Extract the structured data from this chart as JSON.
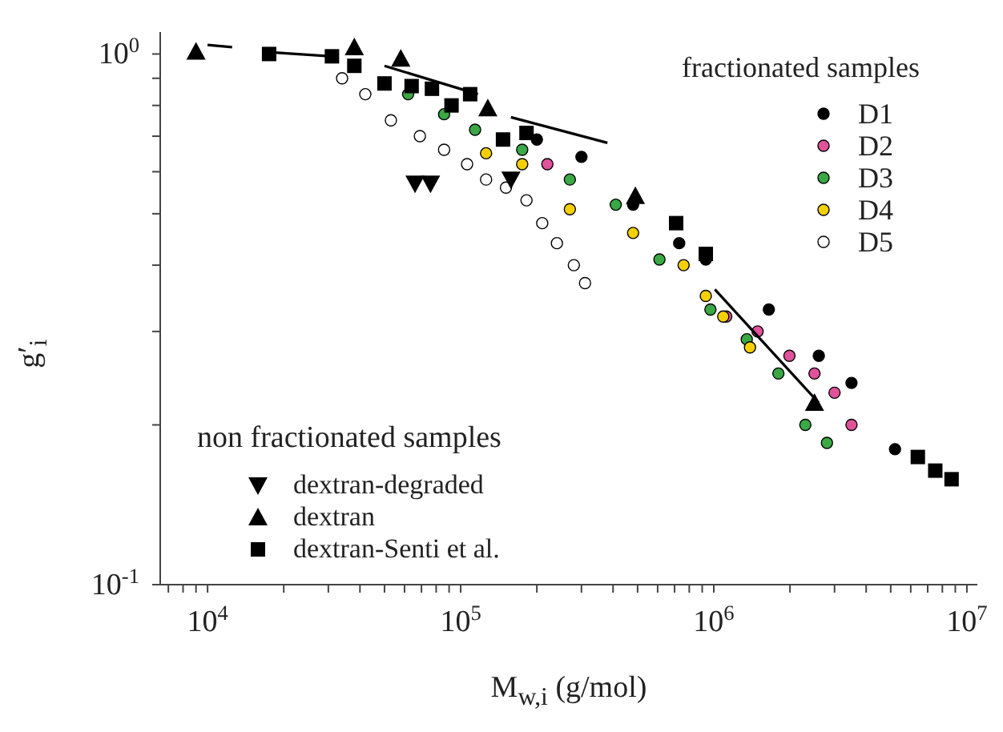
{
  "chart_data": {
    "type": "scatter",
    "xlabel": "M$_{w,i}$ (g/mol)",
    "ylabel": "g′$_{i}$",
    "log": "xy",
    "legend": "right",
    "legend_title": "fractionated samples",
    "annotations": [
      "non fractionated samples"
    ],
    "xlim": [
      6500,
      11000000
    ],
    "ylim": [
      0.1,
      1.1
    ],
    "xticks": [
      {
        "value": 7000,
        "label": null
      },
      {
        "value": 8000,
        "label": null
      },
      {
        "value": 9000,
        "label": null
      },
      {
        "value": 10000,
        "label": "10$^{4}$"
      },
      {
        "value": 20000,
        "label": null
      },
      {
        "value": 30000,
        "label": null
      },
      {
        "value": 40000,
        "label": null
      },
      {
        "value": 50000,
        "label": null
      },
      {
        "value": 60000,
        "label": null
      },
      {
        "value": 70000,
        "label": null
      },
      {
        "value": 80000,
        "label": null
      },
      {
        "value": 90000,
        "label": null
      },
      {
        "value": 100000,
        "label": "10$^{5}$"
      },
      {
        "value": 200000,
        "label": null
      },
      {
        "value": 300000,
        "label": null
      },
      {
        "value": 400000,
        "label": null
      },
      {
        "value": 500000,
        "label": null
      },
      {
        "value": 600000,
        "label": null
      },
      {
        "value": 700000,
        "label": null
      },
      {
        "value": 800000,
        "label": null
      },
      {
        "value": 900000,
        "label": null
      },
      {
        "value": 1000000,
        "label": "10$^{6}$"
      },
      {
        "value": 2000000,
        "label": null
      },
      {
        "value": 3000000,
        "label": null
      },
      {
        "value": 4000000,
        "label": null
      },
      {
        "value": 5000000,
        "label": null
      },
      {
        "value": 6000000,
        "label": null
      },
      {
        "value": 7000000,
        "label": null
      },
      {
        "value": 8000000,
        "label": null
      },
      {
        "value": 9000000,
        "label": null
      },
      {
        "value": 10000000,
        "label": "10$^{7}$"
      }
    ],
    "yticks": [
      {
        "value": 0.1,
        "label": "10$^{-1}$"
      },
      {
        "value": 0.2,
        "label": null
      },
      {
        "value": 0.3,
        "label": null
      },
      {
        "value": 0.4,
        "label": null
      },
      {
        "value": 0.5,
        "label": null
      },
      {
        "value": 0.6,
        "label": null
      },
      {
        "value": 0.7,
        "label": null
      },
      {
        "value": 0.8,
        "label": null
      },
      {
        "value": 0.9,
        "label": null
      },
      {
        "value": 1,
        "label": "10$^{0}$"
      }
    ],
    "series": [
      {
        "name": "D1",
        "color": "#000000",
        "marker": "circle",
        "x": [
          200000,
          300000,
          480000,
          730000,
          930000,
          1650000,
          2600000,
          3500000,
          5200000
        ],
        "values": [
          0.69,
          0.64,
          0.52,
          0.44,
          0.41,
          0.33,
          0.27,
          0.24,
          0.18
        ]
      },
      {
        "name": "D2",
        "color": "#e0529a",
        "marker": "circle",
        "x": [
          220000,
          1120000,
          1490000,
          1990000,
          2500000,
          3000000,
          3500000
        ],
        "values": [
          0.62,
          0.32,
          0.3,
          0.27,
          0.25,
          0.23,
          0.2
        ]
      },
      {
        "name": "D3",
        "color": "#3aa845",
        "marker": "circle",
        "x": [
          62000,
          86000,
          114000,
          175000,
          270000,
          410000,
          610000,
          970000,
          1350000,
          1800000,
          2300000,
          2800000
        ],
        "values": [
          0.84,
          0.77,
          0.72,
          0.66,
          0.58,
          0.52,
          0.41,
          0.33,
          0.29,
          0.25,
          0.2,
          0.185
        ]
      },
      {
        "name": "D4",
        "color": "#f5d000",
        "marker": "circle",
        "x": [
          126000,
          175000,
          270000,
          480000,
          760000,
          930000,
          1090000,
          1390000
        ],
        "values": [
          0.65,
          0.62,
          0.51,
          0.46,
          0.4,
          0.35,
          0.32,
          0.28
        ]
      },
      {
        "name": "D5",
        "color": "#ffffff",
        "marker": "circle",
        "x": [
          34000,
          42000,
          53000,
          69000,
          86000,
          106000,
          126000,
          151000,
          182000,
          210000,
          240000,
          280000,
          310000
        ],
        "values": [
          0.9,
          0.84,
          0.75,
          0.7,
          0.66,
          0.62,
          0.58,
          0.56,
          0.53,
          0.48,
          0.44,
          0.4,
          0.37
        ]
      },
      {
        "name": "dextran-degraded",
        "color": "#000000",
        "marker": "triangle-down",
        "x": [
          66000,
          76000,
          158000
        ],
        "values": [
          0.57,
          0.57,
          0.58
        ]
      },
      {
        "name": "dextran",
        "color": "#000000",
        "marker": "triangle",
        "x": [
          9000,
          38000,
          58000,
          128000,
          490000,
          2500000
        ],
        "values": [
          1.01,
          1.03,
          0.98,
          0.79,
          0.54,
          0.22
        ]
      },
      {
        "name": "dextran-Senti et al.",
        "color": "#000000",
        "marker": "square",
        "x": [
          17500,
          31000,
          38000,
          50000,
          64000,
          77000,
          92000,
          109000,
          147000,
          182000,
          710000,
          930000,
          6400000,
          7500000,
          8700000
        ],
        "values": [
          1.0,
          0.99,
          0.95,
          0.88,
          0.87,
          0.86,
          0.8,
          0.84,
          0.69,
          0.71,
          0.48,
          0.42,
          0.174,
          0.164,
          0.158
        ]
      },
      {
        "type": "line",
        "color": "#000000",
        "marker": "none",
        "x": [
          10000,
          12500
        ],
        "values": [
          1.04,
          1.03
        ]
      },
      {
        "type": "line",
        "color": "#000000",
        "marker": "none",
        "x": [
          16500,
          31000
        ],
        "values": [
          1.01,
          0.99
        ]
      },
      {
        "type": "line",
        "color": "#000000",
        "marker": "none",
        "x": [
          50000,
          117000
        ],
        "values": [
          0.95,
          0.84
        ]
      },
      {
        "type": "line",
        "color": "#000000",
        "marker": "none",
        "x": [
          158000,
          380000
        ],
        "values": [
          0.76,
          0.68
        ]
      },
      {
        "type": "line",
        "color": "#000000",
        "marker": "none",
        "x": [
          1010000,
          2600000
        ],
        "values": [
          0.36,
          0.22
        ]
      }
    ]
  }
}
